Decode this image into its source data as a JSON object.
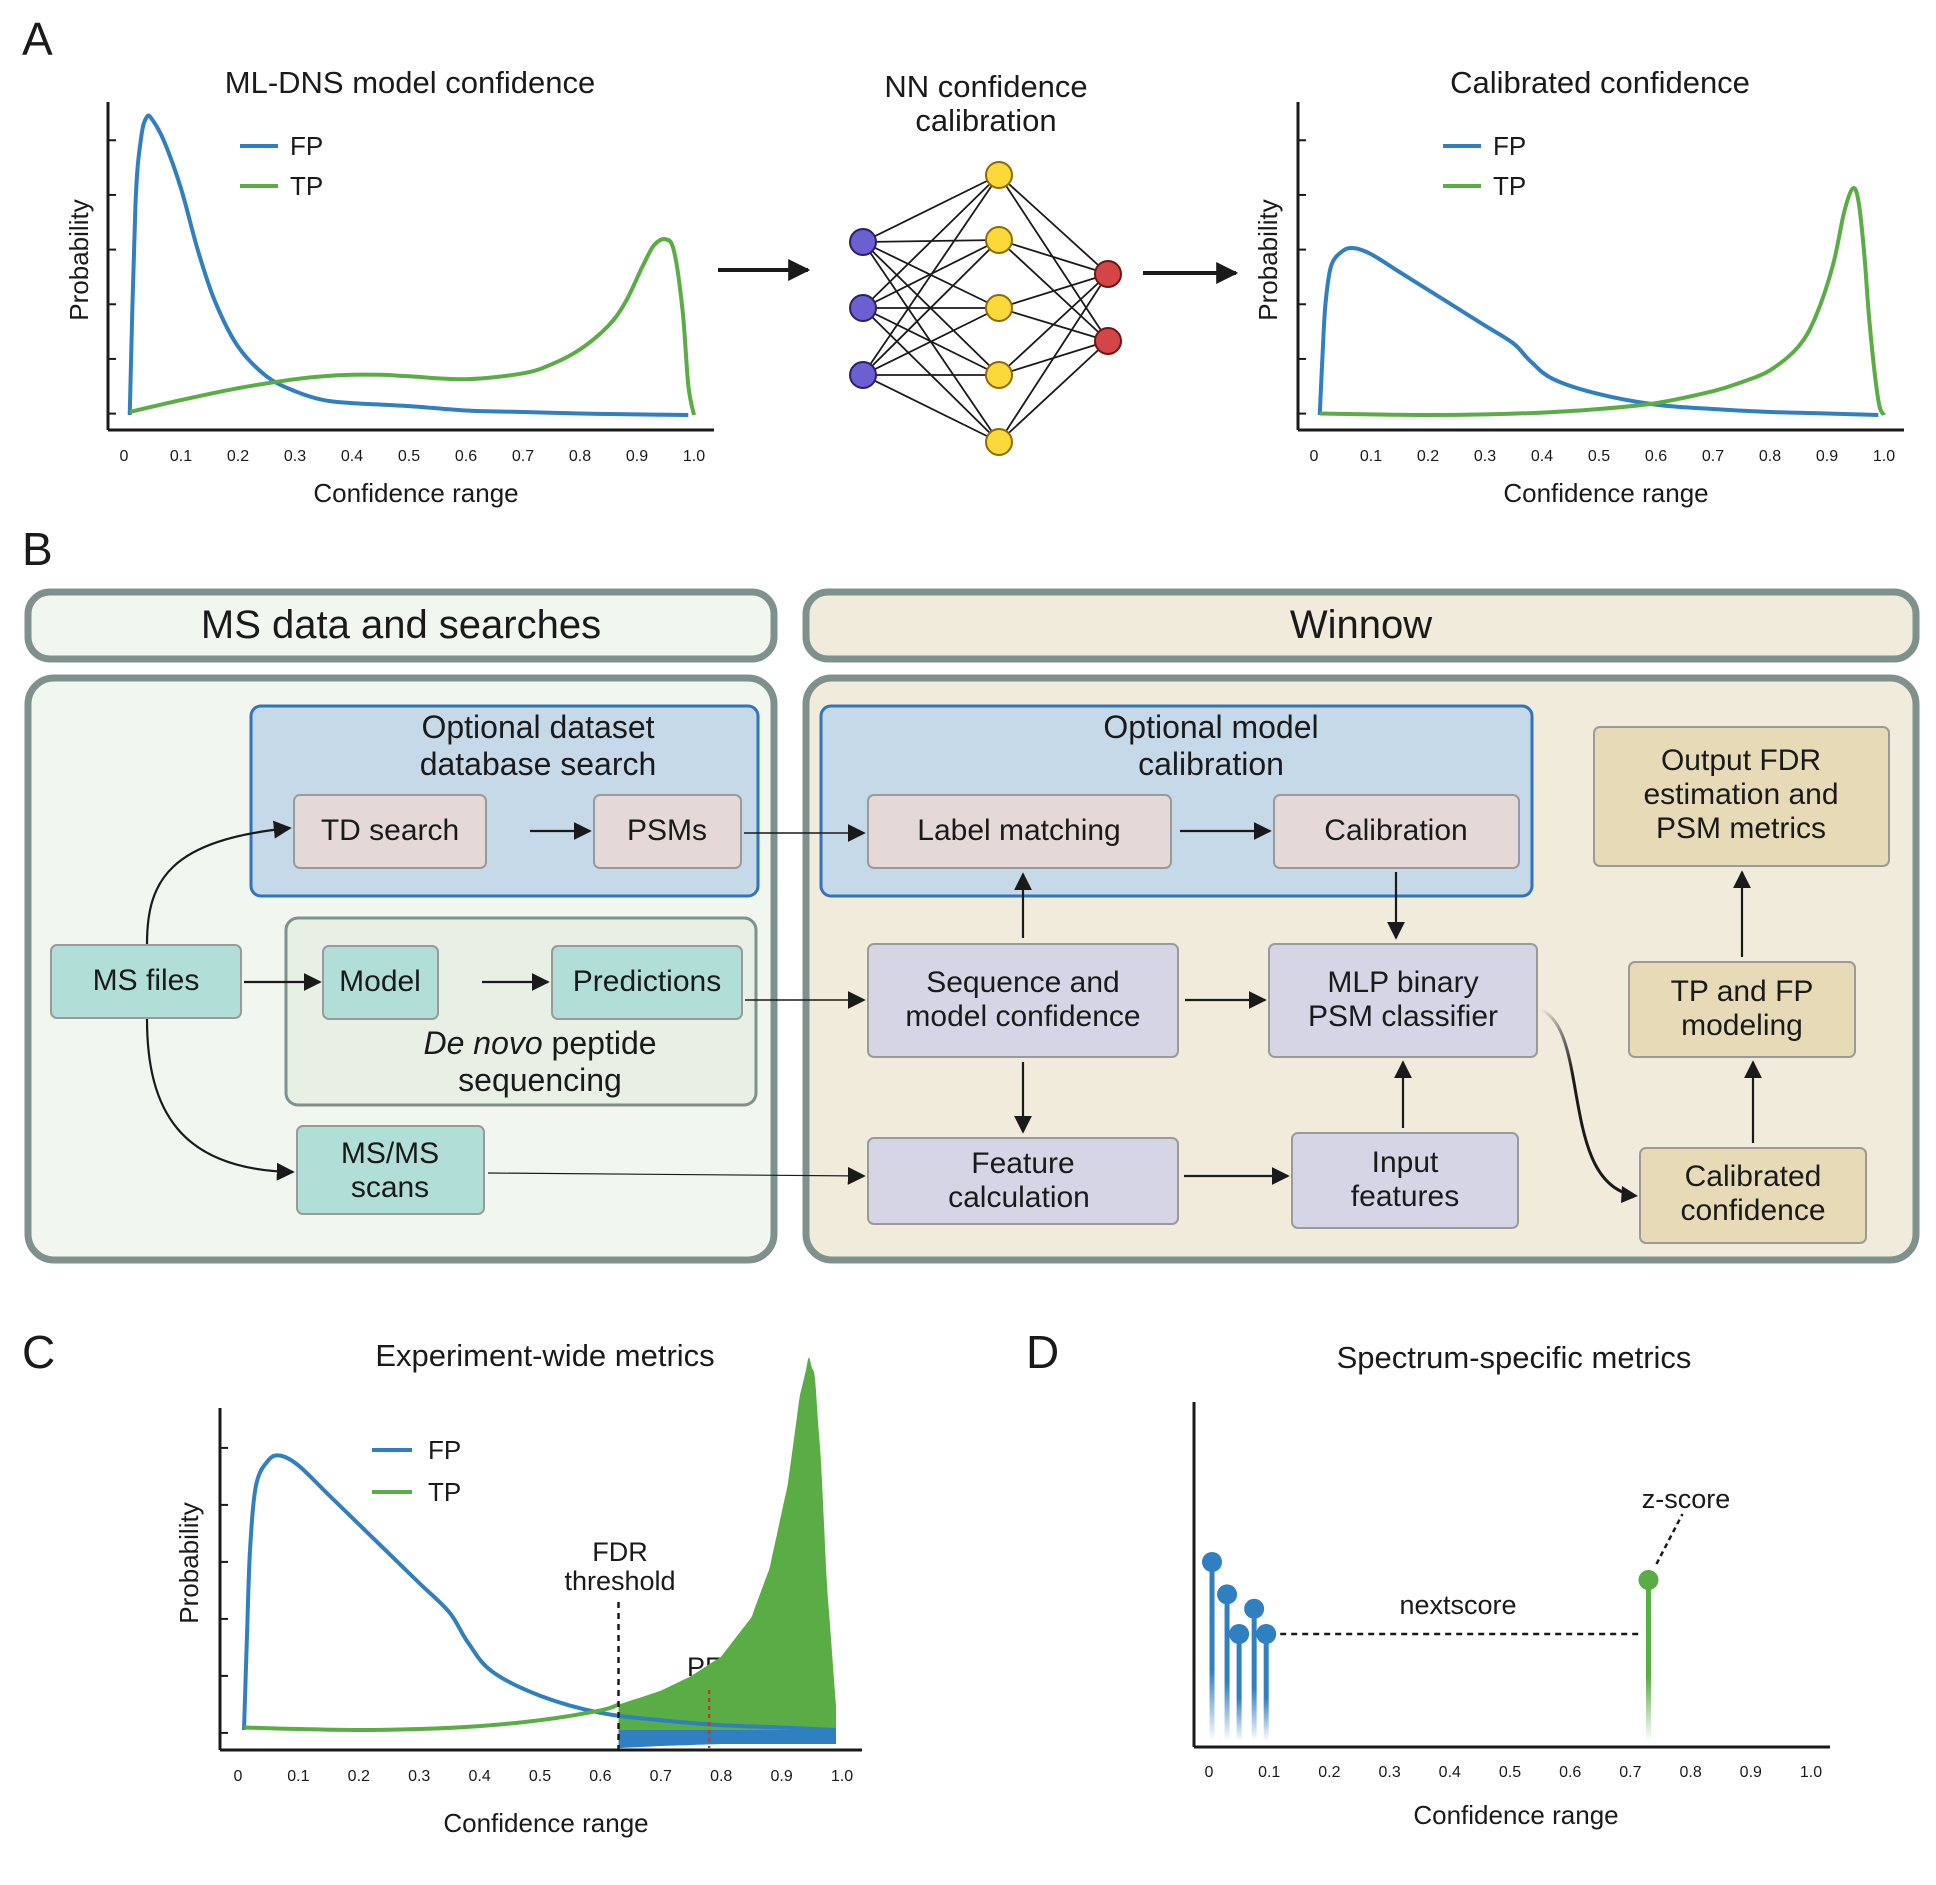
{
  "panel_labels": {
    "a": "A",
    "b": "B",
    "c": "C",
    "d": "D"
  },
  "colors": {
    "fp": "#2f7fc1",
    "tp": "#5aac44",
    "input_node": "#6b5fd1",
    "hidden_node": "#fcd93a",
    "output_node": "#d44545"
  },
  "panel_a": {
    "left_title": "ML-DNS model confidence",
    "right_title": "Calibrated confidence",
    "nn_title_line1": "NN confidence",
    "nn_title_line2": "calibration"
  },
  "panel_b": {
    "ms_section_title": "MS data and searches",
    "winnow_section_title": "Winnow",
    "optional_search_line1": "Optional dataset",
    "optional_search_line2": "database search",
    "td_search": "TD search",
    "psms": "PSMs",
    "ms_files": "MS files",
    "model": "Model",
    "predictions": "Predictions",
    "denovo_italic": "De novo",
    "denovo_rest": " peptide",
    "denovo_line2": "sequencing",
    "msms_line1": "MS/MS",
    "msms_line2": "scans",
    "optional_cal_line1": "Optional model",
    "optional_cal_line2": "calibration",
    "label_matching": "Label matching",
    "calibration": "Calibration",
    "seq_conf_line1": "Sequence and",
    "seq_conf_line2": "model confidence",
    "mlp_line1": "MLP binary",
    "mlp_line2": "PSM classifier",
    "feature_calc_line1": "Feature",
    "feature_calc_line2": "calculation",
    "input_feat_line1": "Input",
    "input_feat_line2": "features",
    "output_fdr_line1": "Output FDR",
    "output_fdr_line2": "estimation and",
    "output_fdr_line3": "PSM metrics",
    "tpfp_line1": "TP and FP",
    "tpfp_line2": "modeling",
    "calconf_line1": "Calibrated",
    "calconf_line2": "confidence"
  },
  "panel_c": {
    "title": "Experiment-wide metrics",
    "fdr_line1": "FDR",
    "fdr_line2": "threshold",
    "pep": "PEP",
    "fdr_threshold_value": 0.63,
    "pep_value": 0.78
  },
  "panel_d": {
    "title": "Spectrum-specific metrics",
    "nextscore": "nextscore",
    "zscore": "z-score"
  },
  "chart_data": [
    {
      "type": "line",
      "title": "ML-DNS model confidence",
      "xlabel": "Confidence range",
      "ylabel": "Probability",
      "xlim": [
        0,
        1.0
      ],
      "x_ticks": [
        "0",
        "0.1",
        "0.2",
        "0.3",
        "0.4",
        "0.5",
        "0.6",
        "0.7",
        "0.8",
        "0.9",
        "1.0"
      ],
      "legend_position": "top-left",
      "series": [
        {
          "name": "FP",
          "x": [
            0.01,
            0.02,
            0.03,
            0.04,
            0.05,
            0.07,
            0.1,
            0.13,
            0.16,
            0.2,
            0.25,
            0.3,
            0.35,
            0.4,
            0.5,
            0.6,
            0.7,
            0.8,
            0.9,
            0.99
          ],
          "y": [
            0.0,
            0.7,
            0.93,
            1.0,
            0.99,
            0.92,
            0.76,
            0.55,
            0.38,
            0.23,
            0.13,
            0.08,
            0.05,
            0.04,
            0.03,
            0.015,
            0.01,
            0.005,
            0.002,
            0.0
          ]
        },
        {
          "name": "TP",
          "x": [
            0.01,
            0.1,
            0.2,
            0.3,
            0.35,
            0.4,
            0.45,
            0.5,
            0.6,
            0.7,
            0.75,
            0.8,
            0.85,
            0.88,
            0.91,
            0.93,
            0.95,
            0.965,
            0.98,
            0.99,
            1.0
          ],
          "y": [
            0.01,
            0.05,
            0.09,
            0.12,
            0.13,
            0.135,
            0.135,
            0.13,
            0.12,
            0.14,
            0.17,
            0.22,
            0.3,
            0.38,
            0.5,
            0.57,
            0.59,
            0.55,
            0.35,
            0.1,
            0.0
          ]
        }
      ]
    },
    {
      "type": "line",
      "title": "Calibrated confidence",
      "xlabel": "Confidence range",
      "ylabel": "Probability",
      "xlim": [
        0,
        1.0
      ],
      "x_ticks": [
        "0",
        "0.1",
        "0.2",
        "0.3",
        "0.4",
        "0.5",
        "0.6",
        "0.7",
        "0.8",
        "0.9",
        "1.0"
      ],
      "legend_position": "top-left",
      "series": [
        {
          "name": "FP",
          "x": [
            0.01,
            0.015,
            0.02,
            0.03,
            0.05,
            0.07,
            0.1,
            0.15,
            0.2,
            0.25,
            0.3,
            0.35,
            0.38,
            0.42,
            0.5,
            0.6,
            0.7,
            0.8,
            0.9,
            0.99
          ],
          "y": [
            0.0,
            0.2,
            0.37,
            0.5,
            0.55,
            0.56,
            0.54,
            0.48,
            0.42,
            0.36,
            0.3,
            0.24,
            0.18,
            0.12,
            0.07,
            0.035,
            0.02,
            0.01,
            0.005,
            0.0
          ]
        },
        {
          "name": "TP",
          "x": [
            0.01,
            0.1,
            0.2,
            0.3,
            0.4,
            0.5,
            0.6,
            0.7,
            0.75,
            0.8,
            0.85,
            0.88,
            0.91,
            0.93,
            0.945,
            0.955,
            0.965,
            0.975,
            0.99,
            1.0
          ],
          "y": [
            0.005,
            0.002,
            0.0,
            0.002,
            0.008,
            0.02,
            0.04,
            0.08,
            0.11,
            0.15,
            0.23,
            0.33,
            0.5,
            0.68,
            0.76,
            0.72,
            0.55,
            0.3,
            0.05,
            0.0
          ]
        }
      ]
    },
    {
      "type": "area",
      "title": "Experiment-wide metrics",
      "xlabel": "Confidence range",
      "ylabel": "Probability",
      "xlim": [
        0,
        1.0
      ],
      "x_ticks": [
        "0",
        "0.1",
        "0.2",
        "0.3",
        "0.4",
        "0.5",
        "0.6",
        "0.7",
        "0.8",
        "0.9",
        "1.0"
      ],
      "legend_position": "top-center",
      "series": [
        {
          "name": "FP",
          "x": [
            0.01,
            0.015,
            0.02,
            0.03,
            0.05,
            0.07,
            0.1,
            0.15,
            0.2,
            0.25,
            0.3,
            0.35,
            0.38,
            0.42,
            0.5,
            0.6,
            0.7,
            0.8,
            0.9,
            0.99
          ],
          "y": [
            0.0,
            0.2,
            0.37,
            0.5,
            0.55,
            0.56,
            0.54,
            0.48,
            0.42,
            0.36,
            0.3,
            0.24,
            0.18,
            0.12,
            0.07,
            0.035,
            0.02,
            0.01,
            0.005,
            0.0
          ]
        },
        {
          "name": "TP",
          "x": [
            0.01,
            0.1,
            0.2,
            0.3,
            0.4,
            0.5,
            0.6,
            0.7,
            0.75,
            0.8,
            0.85,
            0.88,
            0.91,
            0.93,
            0.945,
            0.955,
            0.965,
            0.975,
            0.99,
            1.0
          ],
          "y": [
            0.005,
            0.002,
            0.0,
            0.002,
            0.008,
            0.02,
            0.04,
            0.08,
            0.11,
            0.15,
            0.23,
            0.33,
            0.5,
            0.68,
            0.76,
            0.72,
            0.55,
            0.3,
            0.05,
            0.0
          ]
        }
      ]
    },
    {
      "type": "scatter",
      "title": "Spectrum-specific metrics",
      "xlabel": "Confidence range",
      "xlim": [
        0,
        1.0
      ],
      "x_ticks": [
        "0",
        "0.1",
        "0.2",
        "0.3",
        "0.4",
        "0.5",
        "0.6",
        "0.7",
        "0.8",
        "0.9",
        "1.0"
      ],
      "stems_fp": {
        "x": [
          0.005,
          0.03,
          0.05,
          0.075,
          0.095
        ],
        "y": [
          1.0,
          0.82,
          0.6,
          0.74,
          0.6
        ]
      },
      "stems_tp": {
        "x": [
          0.73
        ],
        "y": [
          0.9
        ]
      }
    }
  ]
}
